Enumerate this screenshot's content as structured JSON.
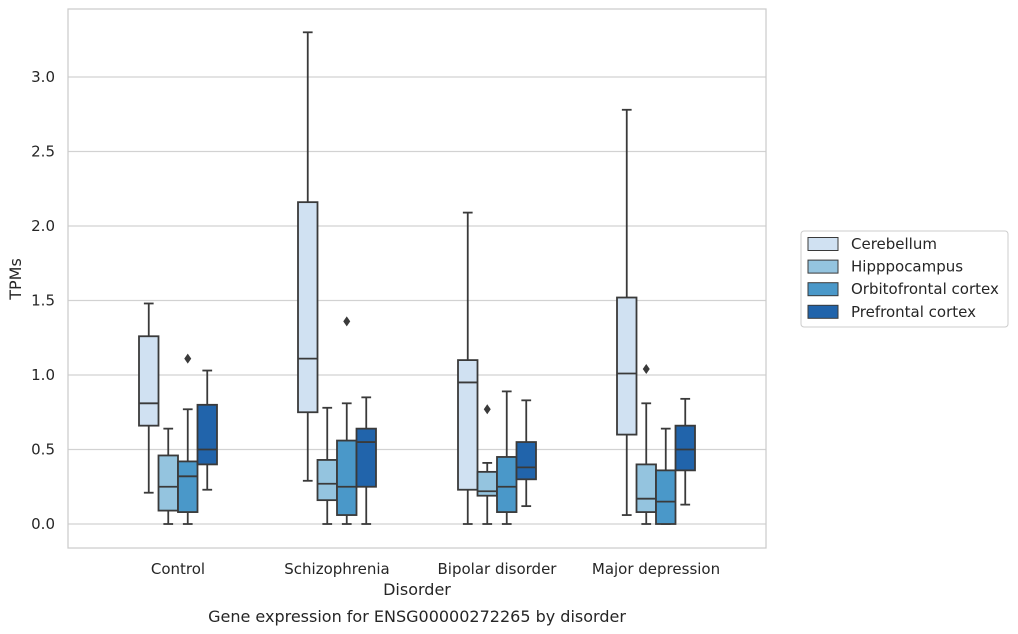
{
  "chart_data": {
    "type": "box",
    "xlabel": "Disorder",
    "ylabel": "TPMs",
    "caption": "Gene expression for ENSG00000272265 by disorder",
    "categories": [
      "Control",
      "Schizophrenia",
      "Bipolar disorder",
      "Major depression"
    ],
    "yticks": [
      "0.0",
      "0.5",
      "1.0",
      "1.5",
      "2.0",
      "2.5",
      "3.0"
    ],
    "ylim": [
      -0.16,
      3.46
    ],
    "grid": true,
    "legend_position": "right",
    "series": [
      {
        "name": "Cerebellum",
        "color": "#d0e1f2",
        "boxes": [
          {
            "whisker_low": 0.21,
            "q1": 0.66,
            "median": 0.81,
            "q3": 1.26,
            "whisker_high": 1.48,
            "outliers": []
          },
          {
            "whisker_low": 0.29,
            "q1": 0.75,
            "median": 1.11,
            "q3": 2.16,
            "whisker_high": 3.3,
            "outliers": []
          },
          {
            "whisker_low": 0.0,
            "q1": 0.23,
            "median": 0.95,
            "q3": 1.1,
            "whisker_high": 2.09,
            "outliers": []
          },
          {
            "whisker_low": 0.06,
            "q1": 0.6,
            "median": 1.01,
            "q3": 1.52,
            "whisker_high": 2.78,
            "outliers": []
          }
        ]
      },
      {
        "name": "Hipppocampus",
        "color": "#94c4df",
        "boxes": [
          {
            "whisker_low": 0.0,
            "q1": 0.09,
            "median": 0.25,
            "q3": 0.46,
            "whisker_high": 0.64,
            "outliers": []
          },
          {
            "whisker_low": 0.0,
            "q1": 0.16,
            "median": 0.27,
            "q3": 0.43,
            "whisker_high": 0.78,
            "outliers": []
          },
          {
            "whisker_low": 0.0,
            "q1": 0.19,
            "median": 0.22,
            "q3": 0.35,
            "whisker_high": 0.41,
            "outliers": [
              0.77
            ]
          },
          {
            "whisker_low": 0.0,
            "q1": 0.08,
            "median": 0.17,
            "q3": 0.4,
            "whisker_high": 0.81,
            "outliers": [
              1.04
            ]
          }
        ]
      },
      {
        "name": "Orbitofrontal cortex",
        "color": "#4a98c9",
        "boxes": [
          {
            "whisker_low": 0.0,
            "q1": 0.08,
            "median": 0.32,
            "q3": 0.42,
            "whisker_high": 0.77,
            "outliers": [
              1.11
            ]
          },
          {
            "whisker_low": 0.0,
            "q1": 0.06,
            "median": 0.25,
            "q3": 0.56,
            "whisker_high": 0.81,
            "outliers": [
              1.36
            ]
          },
          {
            "whisker_low": 0.0,
            "q1": 0.08,
            "median": 0.25,
            "q3": 0.45,
            "whisker_high": 0.89,
            "outliers": []
          },
          {
            "whisker_low": 0.0,
            "q1": 0.0,
            "median": 0.15,
            "q3": 0.36,
            "whisker_high": 0.64,
            "outliers": []
          }
        ]
      },
      {
        "name": "Prefrontal cortex",
        "color": "#2164ab",
        "boxes": [
          {
            "whisker_low": 0.23,
            "q1": 0.4,
            "median": 0.5,
            "q3": 0.8,
            "whisker_high": 1.03,
            "outliers": []
          },
          {
            "whisker_low": 0.0,
            "q1": 0.25,
            "median": 0.55,
            "q3": 0.64,
            "whisker_high": 0.85,
            "outliers": []
          },
          {
            "whisker_low": 0.12,
            "q1": 0.3,
            "median": 0.38,
            "q3": 0.55,
            "whisker_high": 0.83,
            "outliers": []
          },
          {
            "whisker_low": 0.13,
            "q1": 0.36,
            "median": 0.5,
            "q3": 0.66,
            "whisker_high": 0.84,
            "outliers": []
          }
        ]
      }
    ]
  }
}
